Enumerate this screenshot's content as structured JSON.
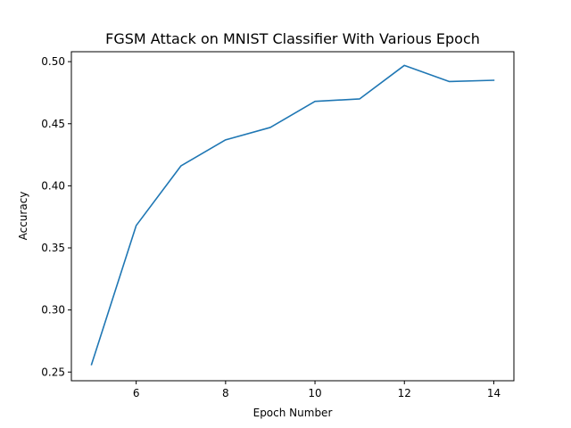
{
  "chart_data": {
    "type": "line",
    "title": "FGSM Attack on MNIST Classifier With Various Epoch",
    "xlabel": "Epoch Number",
    "ylabel": "Accuracy",
    "xlim": [
      4.55,
      14.45
    ],
    "ylim": [
      0.243,
      0.508
    ],
    "xticks": [
      6,
      8,
      10,
      12,
      14
    ],
    "xtick_labels": [
      "6",
      "8",
      "10",
      "12",
      "14"
    ],
    "yticks": [
      0.25,
      0.3,
      0.35,
      0.4,
      0.45,
      0.5
    ],
    "ytick_labels": [
      "0.25",
      "0.30",
      "0.35",
      "0.40",
      "0.45",
      "0.50"
    ],
    "grid": false,
    "series": [
      {
        "name": "accuracy",
        "color": "#1f77b4",
        "x": [
          5,
          6,
          7,
          8,
          9,
          10,
          11,
          12,
          13,
          14
        ],
        "y": [
          0.256,
          0.368,
          0.416,
          0.437,
          0.447,
          0.468,
          0.47,
          0.497,
          0.484,
          0.485
        ]
      }
    ]
  }
}
